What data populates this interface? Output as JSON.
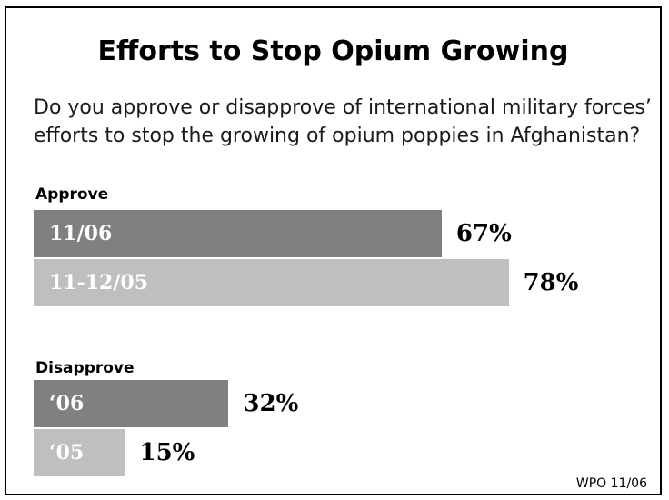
{
  "title": "Efforts to Stop Opium Growing",
  "question": "Do you approve or disapprove of international military forces’ efforts to stop the growing of opium poppies in Afghanistan?",
  "source": "WPO 11/06",
  "colors": {
    "dark": "#808080",
    "light": "#bfbfbf"
  },
  "chart_data": {
    "type": "bar",
    "orientation": "horizontal",
    "groups": [
      {
        "label": "Approve",
        "bars": [
          {
            "category": "11/06",
            "value": 67,
            "value_label": "67%"
          },
          {
            "category": "11-12/05",
            "value": 78,
            "value_label": "78%"
          }
        ]
      },
      {
        "label": "Disapprove",
        "bars": [
          {
            "category": "‘06",
            "value": 32,
            "value_label": "32%"
          },
          {
            "category": "‘05",
            "value": 15,
            "value_label": "15%"
          }
        ]
      }
    ]
  }
}
